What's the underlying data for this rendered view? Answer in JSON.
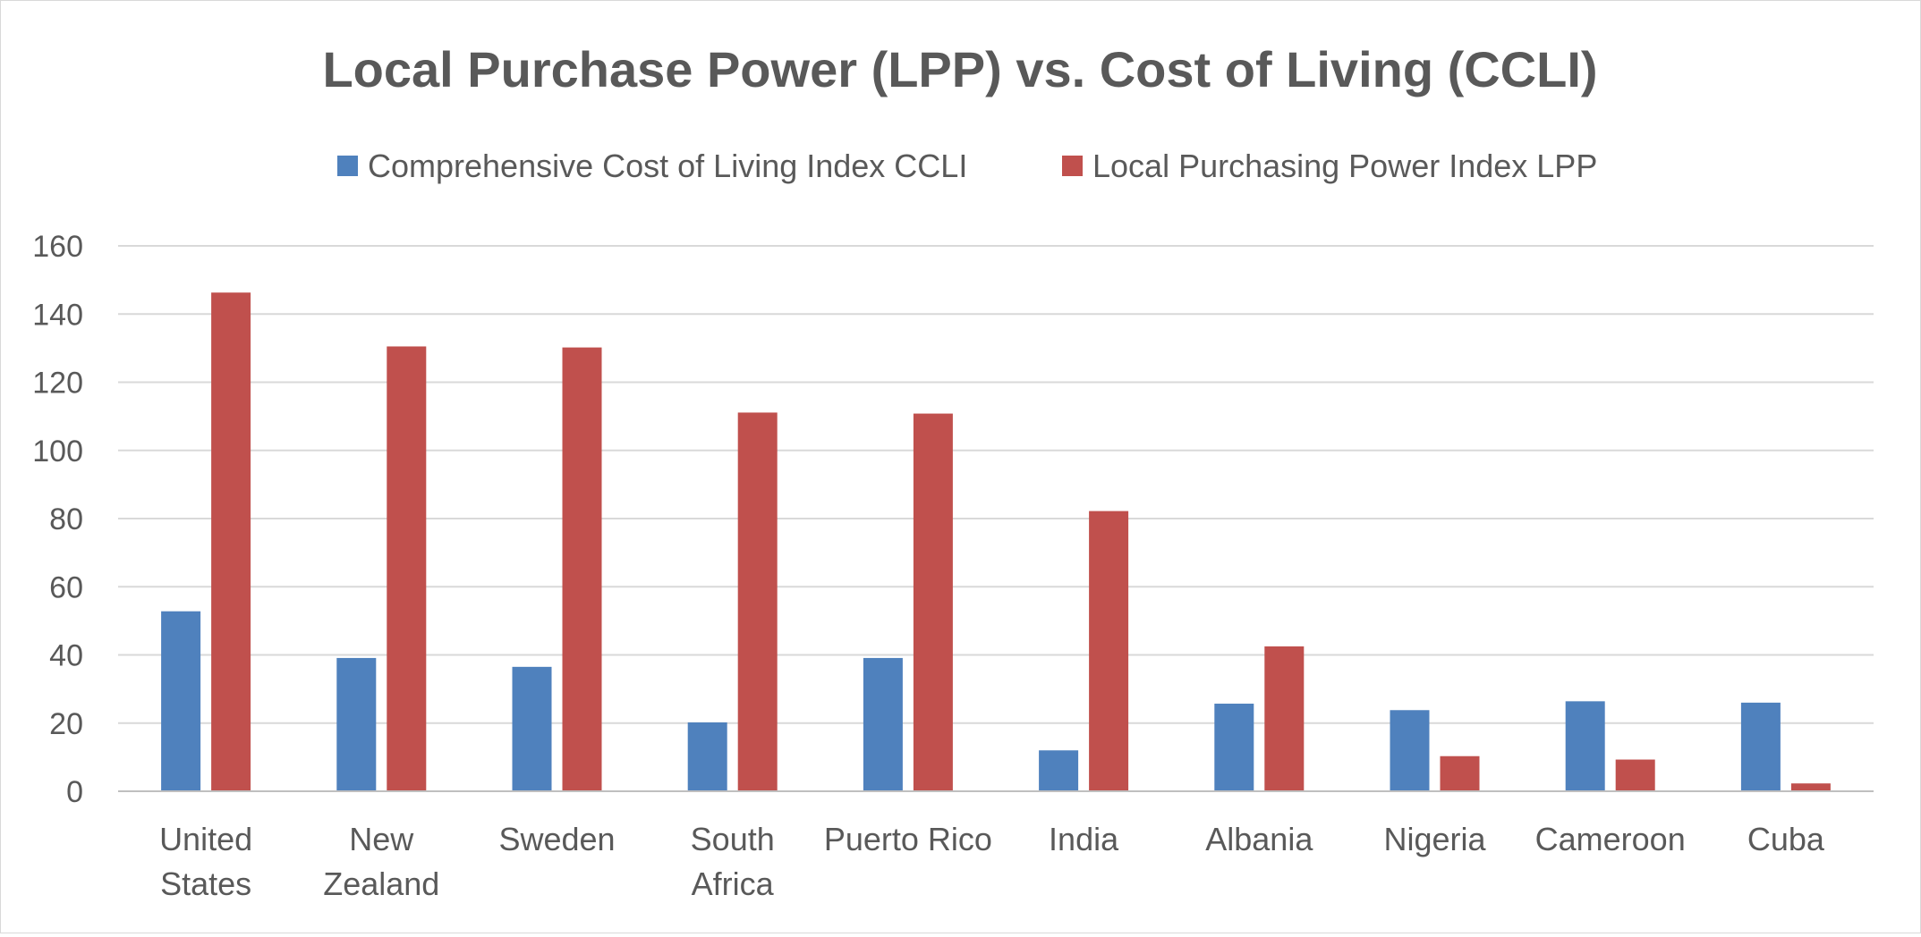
{
  "chart_data": {
    "type": "bar",
    "title": "Local Purchase Power (LPP) vs. Cost of Living (CCLI)",
    "xlabel": "",
    "ylabel": "",
    "ylim": [
      0,
      160
    ],
    "yticks": [
      0,
      20,
      40,
      60,
      80,
      100,
      120,
      140,
      160
    ],
    "grid": true,
    "legend_position": "top",
    "categories": [
      [
        "United",
        "States"
      ],
      [
        "New",
        "Zealand"
      ],
      [
        "Sweden"
      ],
      [
        "South",
        "Africa"
      ],
      [
        "Puerto Rico"
      ],
      [
        "India"
      ],
      [
        "Albania"
      ],
      [
        "Nigeria"
      ],
      [
        "Cameroon"
      ],
      [
        "Cuba"
      ]
    ],
    "series": [
      {
        "name": "Comprehensive Cost of Living Index CCLI",
        "color": "#4f81bd",
        "values": [
          52.8,
          39.1,
          36.5,
          20.2,
          39.1,
          12.0,
          25.7,
          23.8,
          26.4,
          26.0
        ]
      },
      {
        "name": "Local Purchasing Power Index LPP",
        "color": "#c0504d",
        "values": [
          146.3,
          130.5,
          130.2,
          111.1,
          110.8,
          82.2,
          42.5,
          10.3,
          9.3,
          2.3
        ]
      }
    ]
  }
}
